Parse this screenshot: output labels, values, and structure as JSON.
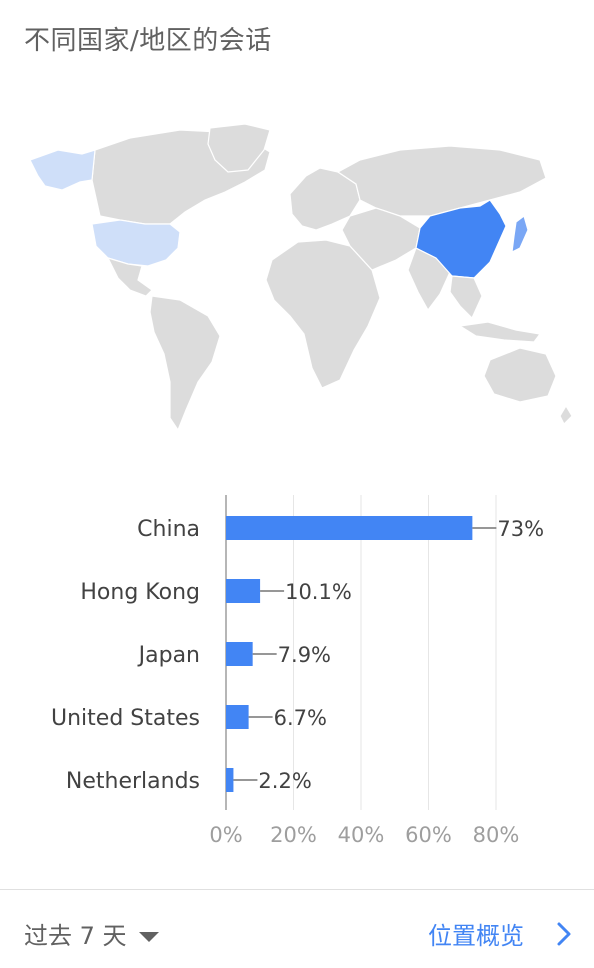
{
  "card": {
    "title": "不同国家/地区的会话"
  },
  "map": {
    "highlight_color": "#4285f4",
    "secondary_color": "#cfdff9",
    "land_color": "#dcdcdc",
    "highlighted_regions": [
      "China",
      "United States"
    ]
  },
  "chart_data": {
    "type": "bar",
    "orientation": "horizontal",
    "categories": [
      "China",
      "Hong Kong",
      "Japan",
      "United States",
      "Netherlands"
    ],
    "values": [
      73,
      10.1,
      7.9,
      6.7,
      2.2
    ],
    "value_labels": [
      "73%",
      "10.1%",
      "7.9%",
      "6.7%",
      "2.2%"
    ],
    "xlim": [
      0,
      80
    ],
    "xticks": [
      "0%",
      "20%",
      "40%",
      "60%",
      "80%"
    ],
    "grid": true,
    "bar_color": "#4285f4"
  },
  "footer": {
    "range_label": "过去 7 天",
    "overview_label": "位置概览",
    "caret_icon": "caret-down-icon",
    "chevron_icon": "chevron-right-icon"
  }
}
